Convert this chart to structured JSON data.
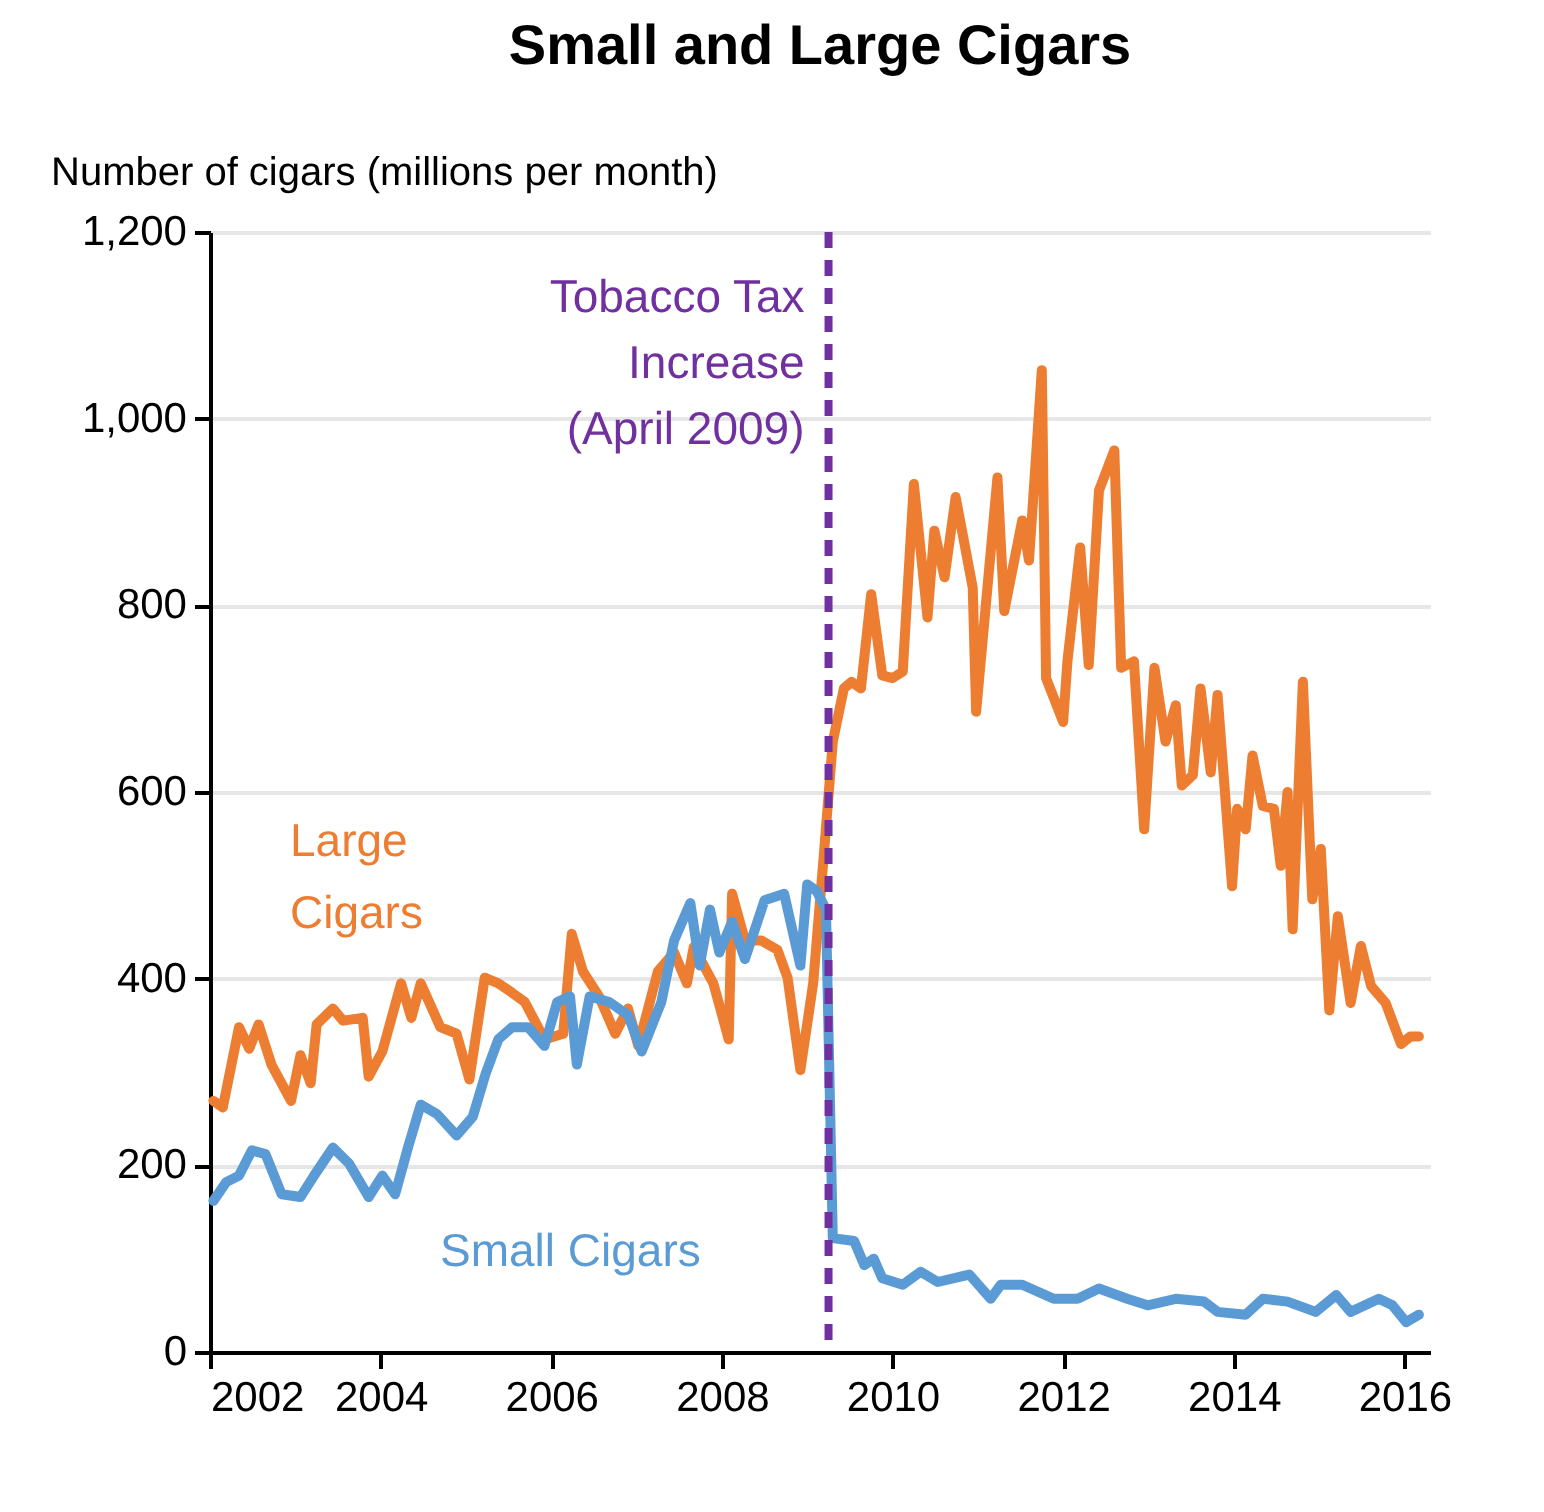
{
  "chart_data": {
    "type": "line",
    "title": "Small and Large Cigars",
    "ylabel": "Number of cigars (millions per month)",
    "xlim": [
      2002,
      2016.3
    ],
    "xticks": [
      2002,
      2004,
      2006,
      2008,
      2010,
      2012,
      2014,
      2016
    ],
    "ylim": [
      0,
      1200
    ],
    "yticks": [
      0,
      {
        "value": 200,
        "label": "200"
      },
      {
        "value": 400,
        "label": "400"
      },
      {
        "value": 600,
        "label": "600"
      },
      {
        "value": 800,
        "label": "800"
      },
      {
        "value": 1000,
        "label": "1,000"
      },
      {
        "value": 1200,
        "label": "1,200"
      }
    ],
    "grid": "y",
    "legend": false,
    "marker": "none",
    "line_style": "solid",
    "ref_lines": [
      {
        "axis": "x",
        "value": 2009.25,
        "label": "Tobacco Tax Increase (April 2009)",
        "color": "#7030a0",
        "line_style": "dashed"
      }
    ],
    "series": [
      {
        "name": "Large Cigars",
        "color": "#ed7d31",
        "x": [
          2002.04,
          2002.15,
          2002.34,
          2002.46,
          2002.57,
          2002.72,
          2002.95,
          2003.06,
          2003.18,
          2003.25,
          2003.44,
          2003.56,
          2003.79,
          2003.86,
          2004.02,
          2004.24,
          2004.36,
          2004.47,
          2004.7,
          2004.89,
          2005.04,
          2005.22,
          2005.38,
          2005.54,
          2005.69,
          2005.92,
          2006.14,
          2006.24,
          2006.37,
          2006.56,
          2006.75,
          2006.9,
          2007.02,
          2007.25,
          2007.44,
          2007.59,
          2007.67,
          2007.9,
          2008.08,
          2008.12,
          2008.27,
          2008.46,
          2008.65,
          2008.77,
          2008.92,
          2009.07,
          2009.19,
          2009.3,
          2009.43,
          2009.52,
          2009.63,
          2009.75,
          2009.88,
          2010.0,
          2010.12,
          2010.25,
          2010.41,
          2010.49,
          2010.61,
          2010.74,
          2010.94,
          2010.98,
          2011.23,
          2011.31,
          2011.52,
          2011.6,
          2011.75,
          2011.8,
          2012.0,
          2012.05,
          2012.2,
          2012.3,
          2012.42,
          2012.6,
          2012.68,
          2012.83,
          2012.95,
          2013.07,
          2013.2,
          2013.32,
          2013.39,
          2013.52,
          2013.61,
          2013.73,
          2013.81,
          2013.98,
          2014.04,
          2014.14,
          2014.22,
          2014.34,
          2014.47,
          2014.55,
          2014.63,
          2014.69,
          2014.81,
          2014.92,
          2015.02,
          2015.12,
          2015.22,
          2015.37,
          2015.49,
          2015.61,
          2015.78,
          2015.96,
          2016.07,
          2016.17
        ],
        "values": [
          269,
          262,
          348,
          325,
          351,
          308,
          269,
          318,
          288,
          351,
          368,
          355,
          358,
          295,
          322,
          395,
          358,
          395,
          348,
          341,
          292,
          401,
          395,
          385,
          375,
          335,
          341,
          448,
          408,
          381,
          341,
          368,
          328,
          408,
          428,
          395,
          434,
          395,
          335,
          491,
          441,
          441,
          431,
          401,
          302,
          395,
          527,
          654,
          711,
          718,
          711,
          812,
          725,
          722,
          729,
          930,
          787,
          880,
          830,
          916,
          819,
          686,
          937,
          794,
          891,
          848,
          1052,
          722,
          675,
          740,
          862,
          736,
          923,
          966,
          733,
          740,
          560,
          733,
          654,
          693,
          607,
          618,
          711,
          621,
          704,
          499,
          582,
          560,
          639,
          585,
          582,
          521,
          600,
          453,
          718,
          485,
          539,
          366,
          467,
          374,
          435,
          392,
          374,
          330,
          338,
          338
        ]
      },
      {
        "name": "Small Cigars",
        "color": "#5b9bd5",
        "x": [
          2002.04,
          2002.19,
          2002.34,
          2002.49,
          2002.65,
          2002.84,
          2003.06,
          2003.22,
          2003.44,
          2003.63,
          2003.86,
          2004.02,
          2004.17,
          2004.32,
          2004.47,
          2004.66,
          2004.89,
          2005.08,
          2005.23,
          2005.38,
          2005.54,
          2005.73,
          2005.92,
          2006.07,
          2006.22,
          2006.3,
          2006.45,
          2006.68,
          2006.9,
          2007.06,
          2007.29,
          2007.44,
          2007.63,
          2007.74,
          2007.86,
          2007.97,
          2008.12,
          2008.27,
          2008.5,
          2008.73,
          2008.92,
          2009.0,
          2009.11,
          2009.22,
          2009.3,
          2009.55,
          2009.67,
          2009.78,
          2009.88,
          2010.12,
          2010.33,
          2010.53,
          2010.9,
          2011.15,
          2011.27,
          2011.52,
          2011.89,
          2012.17,
          2012.42,
          2012.75,
          2012.99,
          2013.32,
          2013.65,
          2013.81,
          2014.14,
          2014.34,
          2014.63,
          2014.96,
          2015.2,
          2015.37,
          2015.7,
          2015.86,
          2016.02,
          2016.17
        ],
        "values": [
          162,
          182,
          189,
          216,
          212,
          169,
          166,
          189,
          219,
          202,
          166,
          189,
          169,
          219,
          265,
          255,
          232,
          252,
          298,
          335,
          348,
          348,
          328,
          375,
          381,
          308,
          381,
          375,
          361,
          322,
          375,
          441,
          481,
          414,
          474,
          428,
          461,
          421,
          484,
          491,
          414,
          501,
          494,
          474,
          122,
          119,
          93,
          100,
          79,
          72,
          86,
          75,
          83,
          57,
          72,
          72,
          57,
          57,
          68,
          57,
          50,
          57,
          54,
          43,
          40,
          57,
          54,
          43,
          61,
          43,
          57,
          50,
          32,
          40
        ]
      }
    ]
  }
}
